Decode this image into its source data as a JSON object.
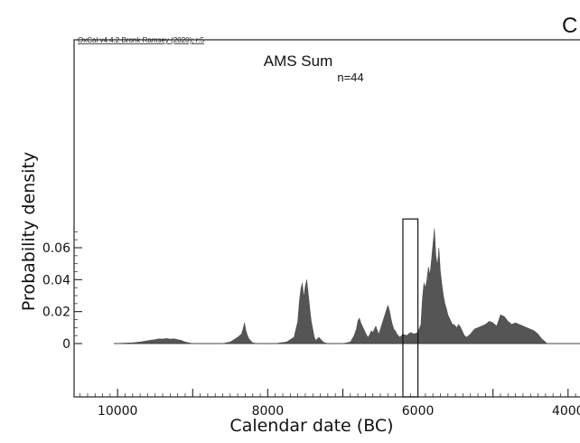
{
  "header": {
    "corner_letter": "C",
    "software_label": "OxCal v4.4.2 Bronk Ramsey (2020); r:5"
  },
  "chart_data": {
    "type": "area",
    "title": "AMS Sum",
    "subtitle": "n=44",
    "xlabel": "Calendar date (BC)",
    "ylabel": "Probability density",
    "x_ticks": [
      10000,
      8000,
      6000,
      4000
    ],
    "x_tick_labels": [
      "10000",
      "8000",
      "6000",
      "4000"
    ],
    "y_ticks": [
      0,
      0.02,
      0.04,
      0.06
    ],
    "y_tick_labels": [
      "0",
      "0.02",
      "0.04",
      "0.06"
    ],
    "xlim": [
      10580,
      3600
    ],
    "ylim": [
      0,
      0.06
    ],
    "x_axis_reversed": true,
    "fill_color": "#555555",
    "highlight_range": {
      "x": [
        6200,
        6000
      ],
      "y": [
        0,
        0.078
      ]
    },
    "series": [
      {
        "x": [
          10050,
          9800,
          9700,
          9600,
          9550,
          9500,
          9450,
          9400,
          9350,
          9300,
          9250,
          9200,
          9150,
          9100,
          9000,
          8600,
          8500,
          8450,
          8400,
          8350,
          8330,
          8310,
          8290,
          8270,
          8250,
          8230,
          8210,
          8200,
          8150,
          7900,
          7750,
          7650,
          7600,
          7580,
          7560,
          7540,
          7520,
          7500,
          7480,
          7460,
          7440,
          7420,
          7400,
          7380,
          7360,
          7340,
          7320,
          7300,
          7280,
          7260,
          7240,
          7200,
          7150,
          7000,
          6900,
          6850,
          6820,
          6800,
          6780,
          6760,
          6740,
          6720,
          6700,
          6680,
          6660,
          6640,
          6620,
          6600,
          6580,
          6560,
          6540,
          6520,
          6500,
          6480,
          6460,
          6440,
          6420,
          6400,
          6380,
          6360,
          6340,
          6320,
          6300,
          6280,
          6260,
          6240,
          6220,
          6200,
          6150,
          6100,
          6050,
          6000,
          5960,
          5940,
          5920,
          5900,
          5880,
          5860,
          5840,
          5820,
          5800,
          5780,
          5760,
          5740,
          5720,
          5700,
          5680,
          5660,
          5640,
          5620,
          5600,
          5580,
          5560,
          5540,
          5520,
          5500,
          5480,
          5460,
          5440,
          5420,
          5400,
          5380,
          5350,
          5300,
          5250,
          5200,
          5150,
          5100,
          5050,
          5000,
          4950,
          4900,
          4850,
          4800,
          4750,
          4700,
          4650,
          4600,
          4550,
          4500,
          4450,
          4400,
          4350,
          4300,
          4280,
          4200,
          3800
        ],
        "y": [
          0,
          0.0005,
          0.001,
          0.0018,
          0.0022,
          0.0025,
          0.003,
          0.0028,
          0.0032,
          0.0028,
          0.003,
          0.0025,
          0.002,
          0.001,
          0,
          0,
          0.001,
          0.0025,
          0.004,
          0.006,
          0.009,
          0.013,
          0.008,
          0.005,
          0.003,
          0.002,
          0.001,
          0.0005,
          0,
          0,
          0.001,
          0.004,
          0.014,
          0.026,
          0.034,
          0.038,
          0.029,
          0.036,
          0.04,
          0.031,
          0.022,
          0.014,
          0.009,
          0.004,
          0.002,
          0.003,
          0.004,
          0.003,
          0.002,
          0.001,
          0.0005,
          0,
          0,
          0,
          0.001,
          0.005,
          0.009,
          0.014,
          0.016,
          0.013,
          0.011,
          0.009,
          0.007,
          0.005,
          0.004,
          0.006,
          0.008,
          0.007,
          0.009,
          0.011,
          0.008,
          0.006,
          0.009,
          0.012,
          0.015,
          0.018,
          0.021,
          0.024,
          0.021,
          0.016,
          0.012,
          0.009,
          0.008,
          0.006,
          0.005,
          0.004,
          0.005,
          0.006,
          0.005,
          0.007,
          0.006,
          0.007,
          0.012,
          0.028,
          0.038,
          0.035,
          0.04,
          0.048,
          0.043,
          0.052,
          0.062,
          0.072,
          0.055,
          0.049,
          0.06,
          0.045,
          0.037,
          0.03,
          0.025,
          0.022,
          0.018,
          0.016,
          0.014,
          0.012,
          0.012,
          0.011,
          0.01,
          0.012,
          0.011,
          0.009,
          0.007,
          0.005,
          0.004,
          0.006,
          0.009,
          0.01,
          0.011,
          0.012,
          0.014,
          0.013,
          0.011,
          0.018,
          0.017,
          0.014,
          0.012,
          0.013,
          0.012,
          0.011,
          0.01,
          0.009,
          0.008,
          0.006,
          0.003,
          0.001,
          0,
          0,
          0
        ]
      }
    ]
  }
}
